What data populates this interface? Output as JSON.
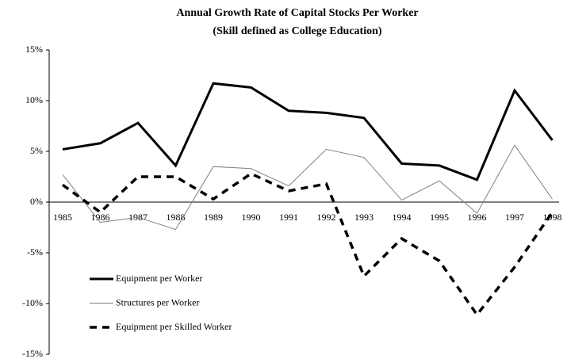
{
  "chart_data": {
    "type": "line",
    "title": "Annual Growth Rate of Capital Stocks Per Worker",
    "subtitle": "(Skill defined as College Education)",
    "categories": [
      "1985",
      "1986",
      "1987",
      "1988",
      "1989",
      "1990",
      "1991",
      "1992",
      "1993",
      "1994",
      "1995",
      "1996",
      "1997",
      "1998"
    ],
    "series": [
      {
        "name": "Equipment per Worker",
        "color": "#000000",
        "values": [
          5.2,
          5.8,
          7.8,
          3.6,
          11.7,
          11.3,
          9.0,
          8.8,
          8.3,
          3.8,
          3.6,
          2.2,
          11.0,
          6.1
        ]
      },
      {
        "name": "Structures per Worker",
        "color": "#808080",
        "values": [
          2.7,
          -2.0,
          -1.5,
          -2.7,
          3.5,
          3.3,
          1.6,
          5.2,
          4.4,
          0.2,
          2.1,
          -1.1,
          5.6,
          0.3
        ]
      },
      {
        "name": "Equipment per Skilled Worker",
        "color": "#000000",
        "values": [
          1.7,
          -1.0,
          2.5,
          2.5,
          0.3,
          2.8,
          1.1,
          1.8,
          -7.3,
          -3.6,
          -5.8,
          -11.1,
          -6.4,
          -1.0
        ]
      }
    ],
    "ylim": [
      -15,
      15
    ],
    "yticks": [
      {
        "value": -15,
        "label": "-15%"
      },
      {
        "value": -10,
        "label": "-10%"
      },
      {
        "value": -5,
        "label": "-5%"
      },
      {
        "value": 0,
        "label": "0%"
      },
      {
        "value": 5,
        "label": "5%"
      },
      {
        "value": 10,
        "label": "10%"
      },
      {
        "value": 15,
        "label": "15%"
      }
    ]
  }
}
